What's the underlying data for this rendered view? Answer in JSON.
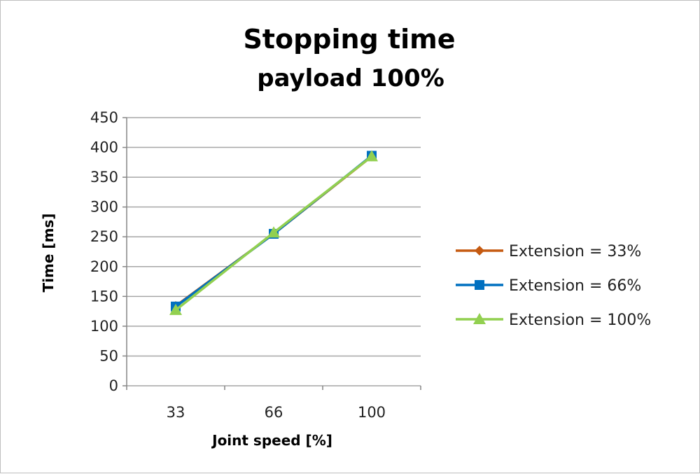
{
  "chart_data": {
    "type": "line",
    "title": "Stopping time",
    "subtitle": "payload 100%",
    "xlabel": "Joint speed [%]",
    "ylabel": "Time [ms]",
    "categories": [
      "33",
      "66",
      "100"
    ],
    "ylim": [
      0,
      450
    ],
    "yticks": [
      0,
      50,
      100,
      150,
      200,
      250,
      300,
      350,
      400,
      450
    ],
    "grid": true,
    "legend_position": "right",
    "series": [
      {
        "name": "Extension = 33%",
        "values": [
          134,
          255,
          385
        ],
        "color": "#C55A11",
        "marker": "diamond"
      },
      {
        "name": "Extension = 66%",
        "values": [
          133,
          255,
          386
        ],
        "color": "#0070C0",
        "marker": "square"
      },
      {
        "name": "Extension = 100%",
        "values": [
          127,
          257,
          385
        ],
        "color": "#92D050",
        "marker": "triangle"
      }
    ]
  }
}
